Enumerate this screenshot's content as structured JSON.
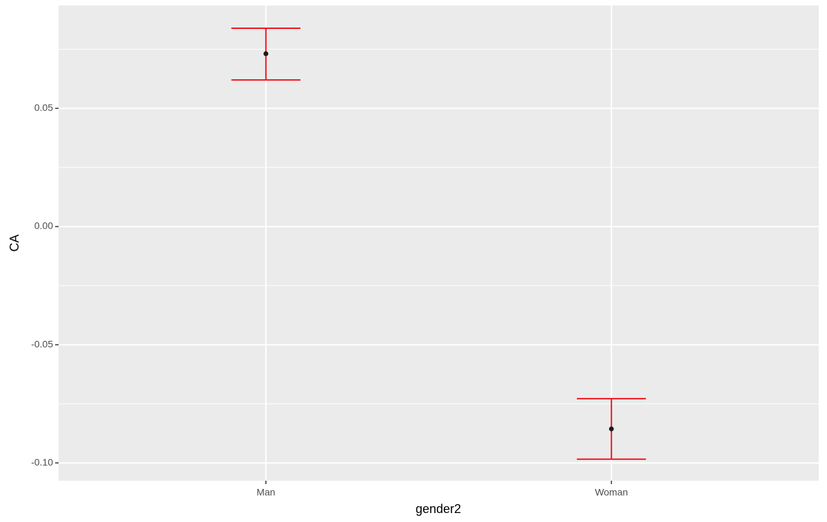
{
  "chart_data": {
    "type": "errorbar",
    "x_label": "gender2",
    "y_label": "CA",
    "categories": [
      "Man",
      "Woman"
    ],
    "values": [
      0.0731,
      -0.0856
    ],
    "lower": [
      0.062,
      -0.0984
    ],
    "upper": [
      0.0839,
      -0.0728
    ],
    "ylim": [
      -0.1075,
      0.0935
    ],
    "yticks": [
      {
        "value": -0.1,
        "label": "-0.10"
      },
      {
        "value": -0.05,
        "label": "-0.05"
      },
      {
        "value": 0,
        "label": "0.00"
      },
      {
        "value": 0.05,
        "label": "0.05"
      }
    ],
    "minor_yticks": [
      -0.075,
      -0.025,
      0.025,
      0.075
    ],
    "point_color": "#1a1a1a",
    "errorbar_color": "#f0141e",
    "panel_color": "#ebebeb",
    "grid": true
  }
}
